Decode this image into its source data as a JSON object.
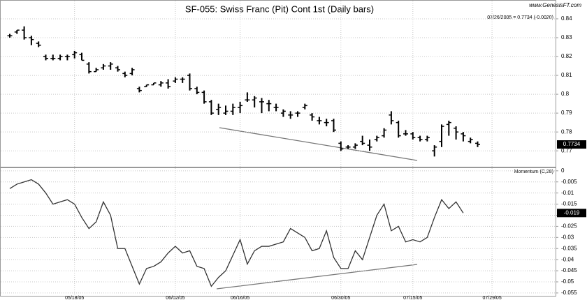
{
  "chart_data": [
    {
      "type": "ohlc",
      "title": "SF-055: Swiss Franc (Pit) Cont 1st (Daily bars)",
      "source": "www.GenesisFT.com",
      "subtitle": "07/26/2005 = 0.7734 (-0.0020)",
      "categories": [
        null,
        null,
        null,
        null,
        null,
        null,
        null,
        null,
        null,
        "05/18/05",
        null,
        null,
        null,
        null,
        null,
        null,
        null,
        null,
        null,
        null,
        null,
        null,
        null,
        "06/02/05",
        null,
        null,
        null,
        null,
        null,
        null,
        null,
        null,
        "06/16/05",
        null,
        null,
        null,
        null,
        null,
        null,
        null,
        null,
        null,
        null,
        null,
        null,
        null,
        "06/30/05",
        null,
        null,
        null,
        null,
        null,
        null,
        null,
        null,
        null,
        "07/15/05",
        null,
        null,
        null,
        null,
        null,
        null,
        null,
        null,
        null,
        null,
        "07/29/05"
      ],
      "open": [
        0.831,
        0.833,
        0.834,
        0.83,
        0.827,
        0.82,
        0.819,
        0.819,
        0.82,
        0.821,
        0.821,
        0.816,
        0.812,
        0.814,
        0.815,
        0.814,
        0.811,
        0.811,
        0.803,
        0.804,
        0.805,
        0.805,
        0.806,
        0.807,
        0.808,
        0.81,
        0.803,
        0.801,
        0.796,
        0.792,
        0.79,
        0.791,
        0.793,
        0.797,
        0.797,
        0.796,
        0.795,
        0.793,
        0.79,
        0.789,
        0.79,
        0.793,
        0.789,
        0.786,
        0.785,
        0.786,
        0.774,
        0.772,
        0.772,
        0.775,
        0.773,
        0.776,
        0.778,
        0.789,
        0.785,
        0.779,
        0.779,
        0.777,
        0.776,
        0.77,
        0.775,
        0.784,
        0.782,
        0.779,
        0.775,
        0.774,
        null,
        null
      ],
      "high": [
        0.832,
        0.834,
        0.836,
        0.831,
        0.828,
        0.821,
        0.821,
        0.821,
        0.821,
        0.823,
        0.822,
        0.817,
        0.814,
        0.816,
        0.817,
        0.815,
        0.812,
        0.814,
        0.804,
        0.805,
        0.806,
        0.807,
        0.808,
        0.809,
        0.809,
        0.811,
        0.804,
        0.802,
        0.797,
        0.795,
        0.794,
        0.795,
        0.796,
        0.801,
        0.799,
        0.798,
        0.797,
        0.795,
        0.792,
        0.791,
        0.791,
        0.795,
        0.79,
        0.788,
        0.787,
        0.787,
        0.775,
        0.773,
        0.774,
        0.778,
        0.776,
        0.778,
        0.782,
        0.791,
        0.786,
        0.781,
        0.78,
        0.778,
        0.778,
        0.773,
        0.784,
        0.786,
        0.783,
        0.78,
        0.777,
        0.775,
        null,
        null
      ],
      "low": [
        0.83,
        0.832,
        0.829,
        0.826,
        0.825,
        0.818,
        0.818,
        0.818,
        0.818,
        0.819,
        0.818,
        0.811,
        0.812,
        0.813,
        0.813,
        0.812,
        0.809,
        0.81,
        0.801,
        0.804,
        0.805,
        0.804,
        0.803,
        0.806,
        0.806,
        0.802,
        0.8,
        0.795,
        0.789,
        0.789,
        0.789,
        0.789,
        0.79,
        0.796,
        0.793,
        0.79,
        0.791,
        0.791,
        0.788,
        0.787,
        0.788,
        0.792,
        0.786,
        0.784,
        0.783,
        0.78,
        0.77,
        0.771,
        0.771,
        0.773,
        0.77,
        0.775,
        0.777,
        0.784,
        0.777,
        0.778,
        0.776,
        0.775,
        0.775,
        0.767,
        0.772,
        0.778,
        0.776,
        0.775,
        0.774,
        0.772,
        null,
        null
      ],
      "close": [
        0.831,
        0.834,
        0.83,
        0.829,
        0.826,
        0.819,
        0.819,
        0.82,
        0.82,
        0.822,
        0.818,
        0.812,
        0.813,
        0.815,
        0.816,
        0.813,
        0.81,
        0.813,
        0.802,
        0.805,
        0.806,
        0.806,
        0.804,
        0.808,
        0.808,
        0.803,
        0.801,
        0.796,
        0.79,
        0.793,
        0.791,
        0.793,
        0.794,
        0.797,
        0.798,
        0.796,
        0.795,
        0.793,
        0.791,
        0.789,
        0.79,
        0.794,
        0.788,
        0.786,
        0.785,
        0.781,
        0.771,
        0.772,
        0.773,
        0.774,
        0.772,
        0.777,
        0.781,
        0.786,
        0.778,
        0.779,
        0.777,
        0.776,
        0.777,
        0.772,
        0.783,
        0.785,
        0.78,
        0.778,
        0.776,
        0.7734,
        null,
        null
      ],
      "color": "#000000",
      "ylim": [
        0.7612,
        0.8496
      ],
      "yticks": [
        0.77,
        0.78,
        0.79,
        0.8,
        0.81,
        0.82,
        0.83,
        0.84
      ],
      "grid": true
    },
    {
      "type": "line",
      "title": "Momentum (C,28)",
      "values": [
        -0.008,
        -0.006,
        -0.005,
        -0.004,
        -0.006,
        -0.01,
        -0.015,
        -0.014,
        -0.013,
        -0.015,
        -0.021,
        -0.026,
        -0.023,
        -0.014,
        -0.02,
        -0.035,
        -0.035,
        -0.043,
        -0.051,
        -0.044,
        -0.043,
        -0.041,
        -0.037,
        -0.034,
        -0.037,
        -0.036,
        -0.043,
        -0.044,
        -0.052,
        -0.048,
        -0.045,
        -0.038,
        -0.031,
        -0.042,
        -0.036,
        -0.034,
        -0.034,
        -0.033,
        -0.032,
        -0.026,
        -0.028,
        -0.03,
        -0.036,
        -0.035,
        -0.027,
        -0.039,
        -0.044,
        -0.044,
        -0.036,
        -0.04,
        -0.03,
        -0.02,
        -0.015,
        -0.027,
        -0.025,
        -0.032,
        -0.031,
        -0.032,
        -0.03,
        -0.021,
        -0.013,
        -0.017,
        -0.014,
        -0.019,
        null,
        null,
        null,
        null
      ],
      "color": "#333333",
      "ylim": [
        -0.0566,
        0.0012
      ],
      "yticks": [
        0,
        -0.005,
        -0.01,
        -0.015,
        -0.02,
        -0.025,
        -0.03,
        -0.035,
        -0.04,
        -0.045,
        -0.05,
        -0.055
      ],
      "grid": true
    }
  ]
}
